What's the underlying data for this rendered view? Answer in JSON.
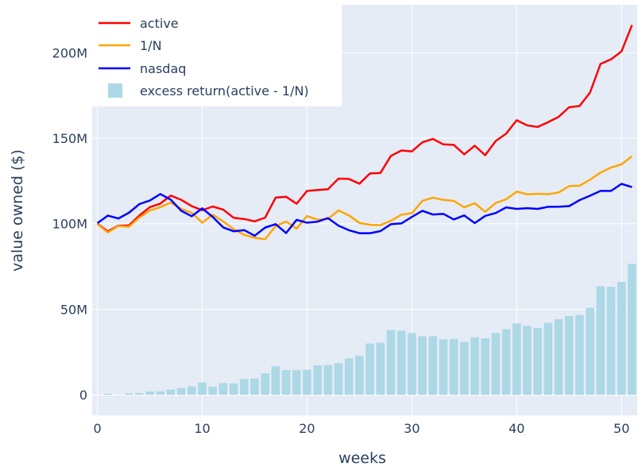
{
  "chart_data": {
    "type": "line",
    "xlabel": "weeks",
    "ylabel": "value owned ($)",
    "xlim": [
      -0.5,
      51.5
    ],
    "ylim": [
      -12000000,
      228000000
    ],
    "x_ticks": [
      0,
      10,
      20,
      30,
      40,
      50
    ],
    "y_ticks": [
      0,
      50000000,
      100000000,
      150000000,
      200000000
    ],
    "y_tick_labels": [
      "0",
      "50M",
      "100M",
      "150M",
      "200M"
    ],
    "grid": true,
    "legend_position": "top-left",
    "x": [
      0,
      1,
      2,
      3,
      4,
      5,
      6,
      7,
      8,
      9,
      10,
      11,
      12,
      13,
      14,
      15,
      16,
      17,
      18,
      19,
      20,
      21,
      22,
      23,
      24,
      25,
      26,
      27,
      28,
      29,
      30,
      31,
      32,
      33,
      34,
      35,
      36,
      37,
      38,
      39,
      40,
      41,
      42,
      43,
      44,
      45,
      46,
      47,
      48,
      49,
      50,
      51
    ],
    "series": [
      {
        "name": "active",
        "kind": "line",
        "color": "#ff0000",
        "values": [
          100,
          95.5,
          98.9,
          99,
          104.8,
          109.7,
          111.8,
          116.5,
          114,
          110.3,
          107.9,
          110.1,
          108.3,
          103.5,
          102.8,
          101.4,
          103.6,
          115.3,
          115.8,
          111.7,
          119.2,
          119.7,
          120.2,
          126.4,
          126.2,
          123.4,
          129.4,
          129.7,
          139.7,
          142.8,
          142.3,
          147.6,
          149.6,
          146.4,
          146.1,
          140.6,
          145.6,
          140.1,
          148.4,
          152.7,
          160.5,
          157.5,
          156.6,
          159.4,
          162.5,
          168.1,
          168.8,
          176.7,
          193.4,
          196.1,
          200.7,
          216.1
        ]
      },
      {
        "name": "1/N",
        "kind": "line",
        "color": "#ffa500",
        "values": [
          99.8,
          94.9,
          98.7,
          98.2,
          103.7,
          107.7,
          109.7,
          112.4,
          108.7,
          106.4,
          100.6,
          105.3,
          101.4,
          96.8,
          93.5,
          91.8,
          91,
          98.6,
          101.3,
          97.2,
          104.5,
          102.4,
          102.8,
          107.8,
          104.9,
          100.5,
          99.4,
          99.2,
          101.8,
          105.3,
          106.2,
          113.4,
          115.3,
          114,
          113.4,
          109.6,
          112,
          107,
          112.2,
          114.3,
          118.8,
          117.2,
          117.5,
          117.3,
          118.3,
          122,
          122.2,
          125.8,
          129.9,
          132.9,
          134.7,
          139.5
        ]
      },
      {
        "name": "nasdaq",
        "kind": "line",
        "color": "#0000ff",
        "values": [
          100.4,
          104.8,
          103.1,
          106.4,
          111.5,
          113.6,
          117.4,
          114.1,
          107.6,
          104.4,
          109,
          104,
          97.9,
          95.6,
          96.3,
          93,
          97.8,
          99.8,
          94.6,
          102.3,
          100.6,
          101.2,
          103.3,
          98.9,
          96.2,
          94.5,
          94.5,
          95.7,
          99.8,
          100.2,
          104,
          107.6,
          105.4,
          105.8,
          102.5,
          104.9,
          100.4,
          104.6,
          106.3,
          109.6,
          108.7,
          109.1,
          108.7,
          109.9,
          110,
          110.3,
          113.8,
          116.4,
          119.2,
          119.2,
          123.3,
          121.4
        ]
      },
      {
        "name": "excess return(active - 1/N)",
        "kind": "bar",
        "color": "#add8e6",
        "values": [
          0.2,
          0.6,
          0.2,
          0.8,
          1.1,
          2,
          2.1,
          3.1,
          3.9,
          4.9,
          7.3,
          4.8,
          6.9,
          6.7,
          9.3,
          9.6,
          12.6,
          16.7,
          14.5,
          14.5,
          14.7,
          17.3,
          17.4,
          18.6,
          21.3,
          22.9,
          30,
          30.5,
          37.9,
          37.5,
          36.1,
          34.2,
          34.3,
          32.4,
          32.7,
          31,
          33.6,
          33.1,
          36.2,
          38.4,
          41.7,
          40.3,
          39.1,
          42.1,
          44.2,
          46.1,
          46.6,
          50.9,
          63.5,
          63.2,
          66,
          76.6
        ]
      }
    ]
  }
}
